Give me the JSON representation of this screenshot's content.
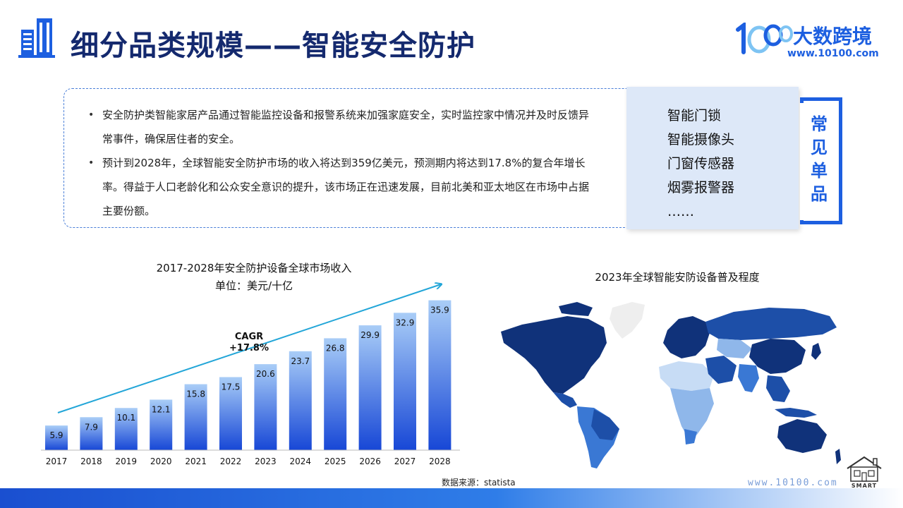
{
  "header": {
    "title": "细分品类规模——智能安全防护",
    "brand_name": "大数跨境",
    "brand_url": "www.10100.com"
  },
  "info": {
    "bullets": [
      "安全防护类智能家居产品通过智能监控设备和报警系统来加强家庭安全，实时监控家中情况并及时反馈异常事件，确保居住者的安全。",
      "预计到2028年，全球智能安全防护市场的收入将达到359亿美元，预测期内将达到17.8%的复合年增长率。得益于人口老龄化和公众安全意识的提升，该市场正在迅速发展，目前北美和亚太地区在市场中占据主要份额。"
    ]
  },
  "common_items": {
    "label": "常见单品",
    "items": [
      "智能门锁",
      "智能摄像头",
      "门窗传感器",
      "烟雾报警器",
      "……"
    ]
  },
  "chart_data": {
    "type": "bar",
    "title": "2017-2028年安全防护设备全球市场收入",
    "subtitle": "单位：美元/十亿",
    "categories": [
      "2017",
      "2018",
      "2019",
      "2020",
      "2021",
      "2022",
      "2023",
      "2024",
      "2025",
      "2026",
      "2027",
      "2028"
    ],
    "values": [
      5.9,
      7.9,
      10.1,
      12.1,
      15.8,
      17.5,
      20.6,
      23.7,
      26.8,
      29.9,
      32.9,
      35.9
    ],
    "ylim": [
      0,
      36
    ],
    "annotation": {
      "line1": "CAGR",
      "line2": "+17.8%"
    },
    "grid": false,
    "colors": {
      "bar_top": "#a9cdf7",
      "bar_bottom": "#1747d6",
      "arrow": "#23a6d8"
    }
  },
  "map": {
    "title": "2023年全球智能安防设备普及程度",
    "colors": {
      "high": "#10327a",
      "mid_high": "#1d4fa8",
      "mid": "#3a78d4",
      "low": "#8fb7ea",
      "very_low": "#c7dcf5",
      "none": "#eeeeee"
    }
  },
  "footer": {
    "source": "数据来源：statista",
    "url": "www.10100.com",
    "smart_label": "SMART"
  }
}
